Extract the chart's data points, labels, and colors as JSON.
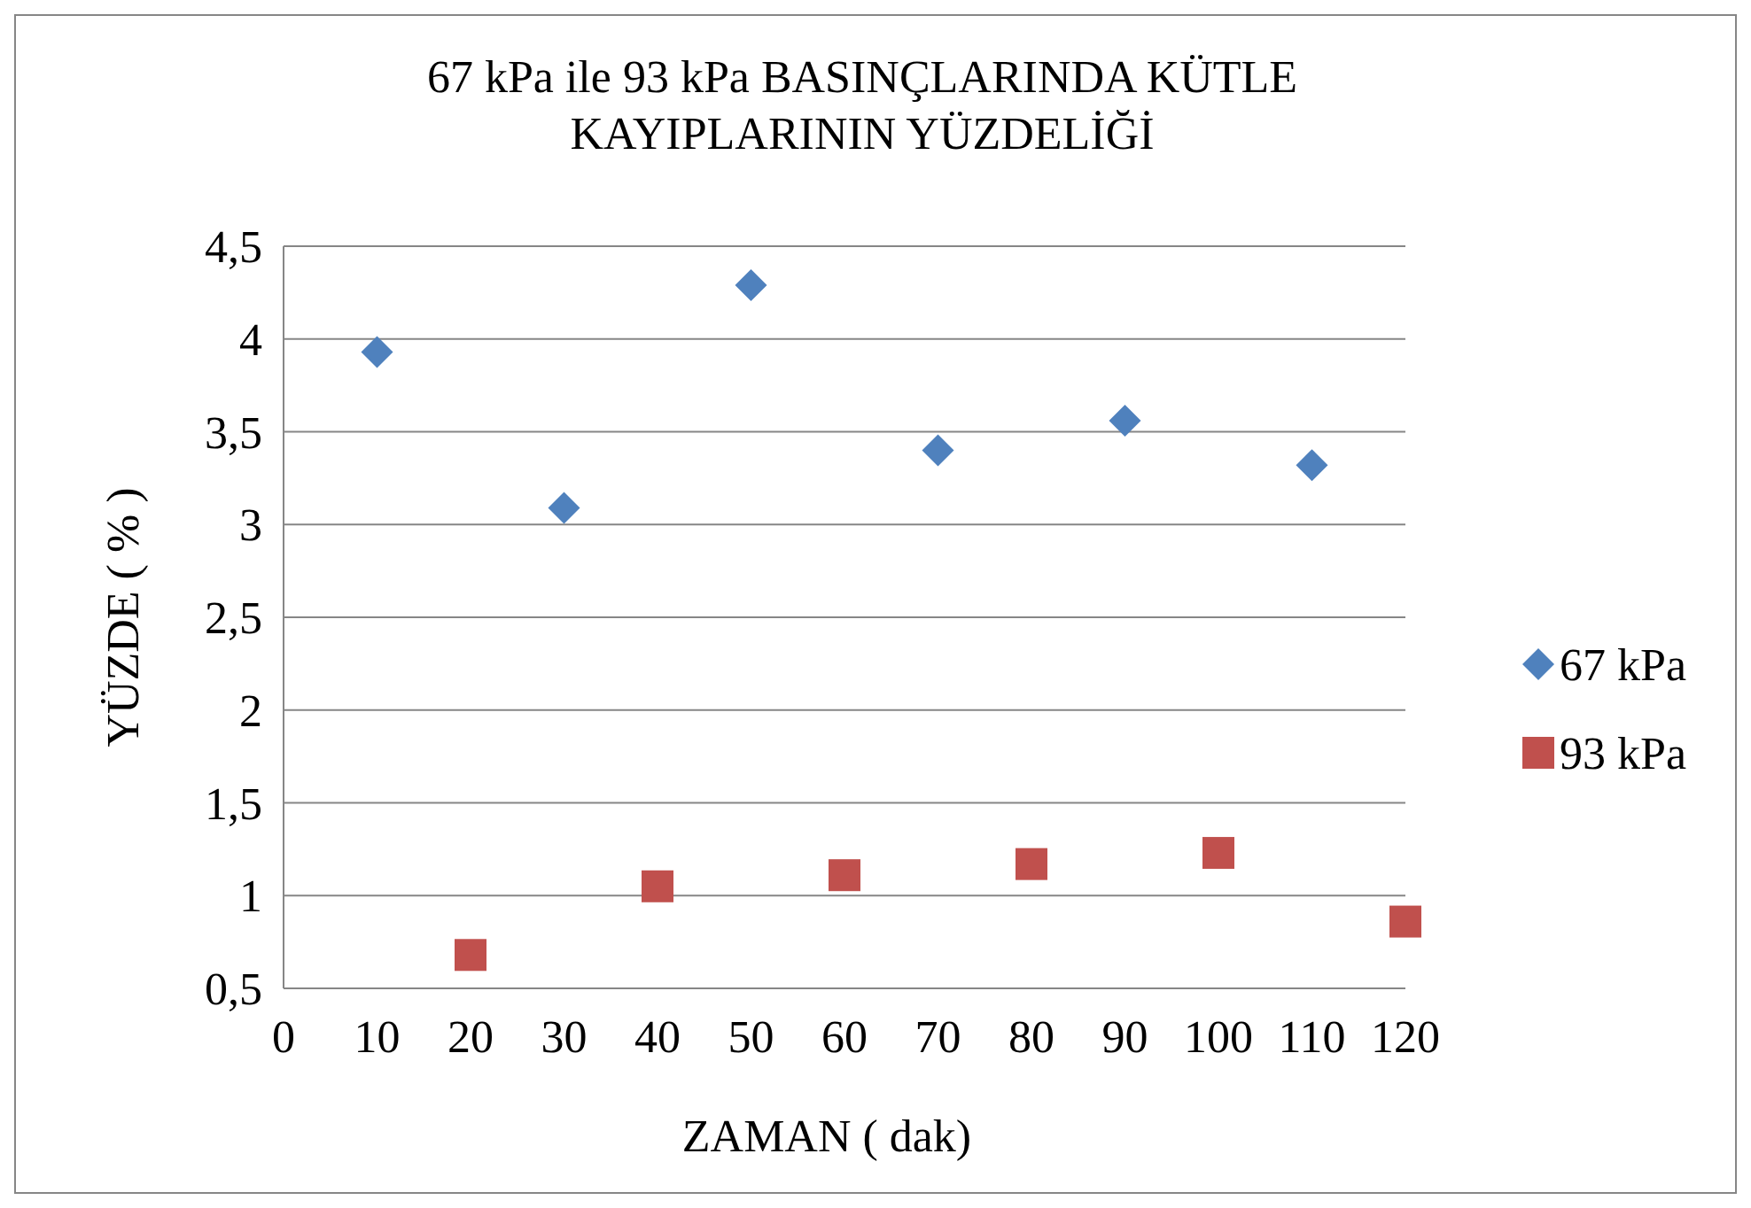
{
  "chart_data": {
    "type": "scatter",
    "title": "67 kPa ile 93 kPa BASINÇLARINDA KÜTLE KAYIPLARININ YÜZDELİĞİ",
    "xlabel": "ZAMAN ( dak)",
    "ylabel": "YÜZDE ( % )",
    "series": [
      {
        "name": "67 kPa",
        "color": "#4f81bd",
        "marker": "diamond",
        "x": [
          10,
          30,
          50,
          70,
          90,
          110
        ],
        "values": [
          3.93,
          3.09,
          4.29,
          3.4,
          3.56,
          3.32
        ]
      },
      {
        "name": "93 kPa",
        "color": "#c0504d",
        "marker": "square",
        "x": [
          20,
          40,
          60,
          80,
          100,
          120
        ],
        "values": [
          0.68,
          1.05,
          1.11,
          1.17,
          1.23,
          0.86
        ]
      }
    ],
    "xlim": [
      0,
      120
    ],
    "xticks": [
      0,
      10,
      20,
      30,
      40,
      50,
      60,
      70,
      80,
      90,
      100,
      110,
      120
    ],
    "ylim": [
      0.5,
      4.5
    ],
    "yticks": [
      {
        "value": 0.5,
        "label": "0,5"
      },
      1,
      {
        "value": 1.5,
        "label": "1,5"
      },
      2,
      {
        "value": 2.5,
        "label": "2,5"
      },
      3,
      {
        "value": 3.5,
        "label": "3,5"
      },
      4,
      {
        "value": 4.5,
        "label": "4,5"
      }
    ],
    "grid": "y",
    "legend": "right"
  }
}
